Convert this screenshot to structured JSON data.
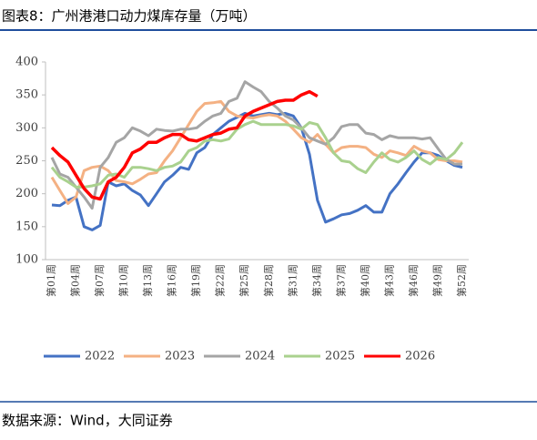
{
  "chart_data": {
    "type": "line",
    "title": "图表8：广州港港口动力煤库存量（万吨）",
    "source": "数据来源：Wind，大同证券",
    "categories": [
      "第01周",
      null,
      null,
      "第04周",
      null,
      null,
      "第07周",
      null,
      null,
      "第10周",
      null,
      null,
      "第13周",
      null,
      null,
      "第16周",
      null,
      null,
      "第19周",
      null,
      null,
      "第22周",
      null,
      null,
      "第25周",
      null,
      null,
      "第28周",
      null,
      null,
      "第31周",
      null,
      null,
      "第34周",
      null,
      null,
      "第37周",
      null,
      null,
      "第40周",
      null,
      null,
      "第43周",
      null,
      null,
      "第46周",
      null,
      null,
      "第49周",
      null,
      null,
      "第52周"
    ],
    "ylim": [
      100,
      400
    ],
    "yticks": [
      100,
      150,
      200,
      250,
      300,
      350,
      400
    ],
    "series": [
      {
        "name": "2022",
        "color": "#4472c4",
        "values": [
          183,
          182,
          190,
          195,
          150,
          145,
          152,
          218,
          212,
          215,
          205,
          198,
          182,
          200,
          218,
          228,
          240,
          237,
          262,
          270,
          290,
          300,
          310,
          316,
          322,
          318,
          320,
          322,
          320,
          322,
          318,
          300,
          260,
          190,
          157,
          162,
          168,
          170,
          175,
          182,
          172,
          172,
          200,
          215,
          232,
          248,
          262,
          262,
          258,
          250,
          243,
          240
        ]
      },
      {
        "name": "2023",
        "color": "#f4b183",
        "values": [
          225,
          205,
          185,
          195,
          235,
          240,
          242,
          235,
          220,
          218,
          215,
          222,
          230,
          232,
          250,
          265,
          285,
          305,
          325,
          337,
          338,
          340,
          325,
          318,
          316,
          315,
          318,
          320,
          318,
          310,
          298,
          285,
          278,
          290,
          275,
          262,
          270,
          272,
          272,
          270,
          260,
          255,
          265,
          262,
          258,
          272,
          265,
          262,
          252,
          250,
          250,
          248
        ]
      },
      {
        "name": "2024",
        "color": "#a5a5a5",
        "values": [
          255,
          230,
          225,
          210,
          195,
          178,
          240,
          255,
          278,
          285,
          300,
          295,
          288,
          298,
          296,
          295,
          298,
          298,
          300,
          310,
          318,
          322,
          340,
          345,
          370,
          362,
          355,
          340,
          330,
          318,
          312,
          300,
          285,
          280,
          275,
          285,
          302,
          305,
          305,
          292,
          290,
          282,
          288,
          285,
          285,
          285,
          283,
          285,
          268,
          252,
          245,
          245
        ]
      },
      {
        "name": "2025",
        "color": "#a9d18e",
        "values": [
          240,
          225,
          218,
          210,
          210,
          212,
          215,
          228,
          230,
          225,
          240,
          240,
          238,
          235,
          240,
          242,
          248,
          265,
          270,
          280,
          282,
          280,
          283,
          298,
          305,
          310,
          305,
          305,
          305,
          305,
          303,
          298,
          308,
          305,
          285,
          262,
          250,
          248,
          238,
          232,
          248,
          262,
          252,
          248,
          255,
          265,
          252,
          245,
          255,
          252,
          262,
          278
        ]
      },
      {
        "name": "2026",
        "color": "#ff0000",
        "values": [
          270,
          258,
          248,
          228,
          208,
          195,
          192,
          218,
          225,
          240,
          262,
          268,
          278,
          278,
          285,
          290,
          290,
          282,
          280,
          285,
          290,
          292,
          298,
          300,
          318,
          325,
          330,
          335,
          340,
          342,
          342,
          350,
          355,
          348,
          null,
          null,
          null,
          null,
          null,
          null,
          null,
          null,
          null,
          null,
          null,
          null,
          null,
          null,
          null,
          null,
          null,
          null
        ]
      }
    ]
  }
}
